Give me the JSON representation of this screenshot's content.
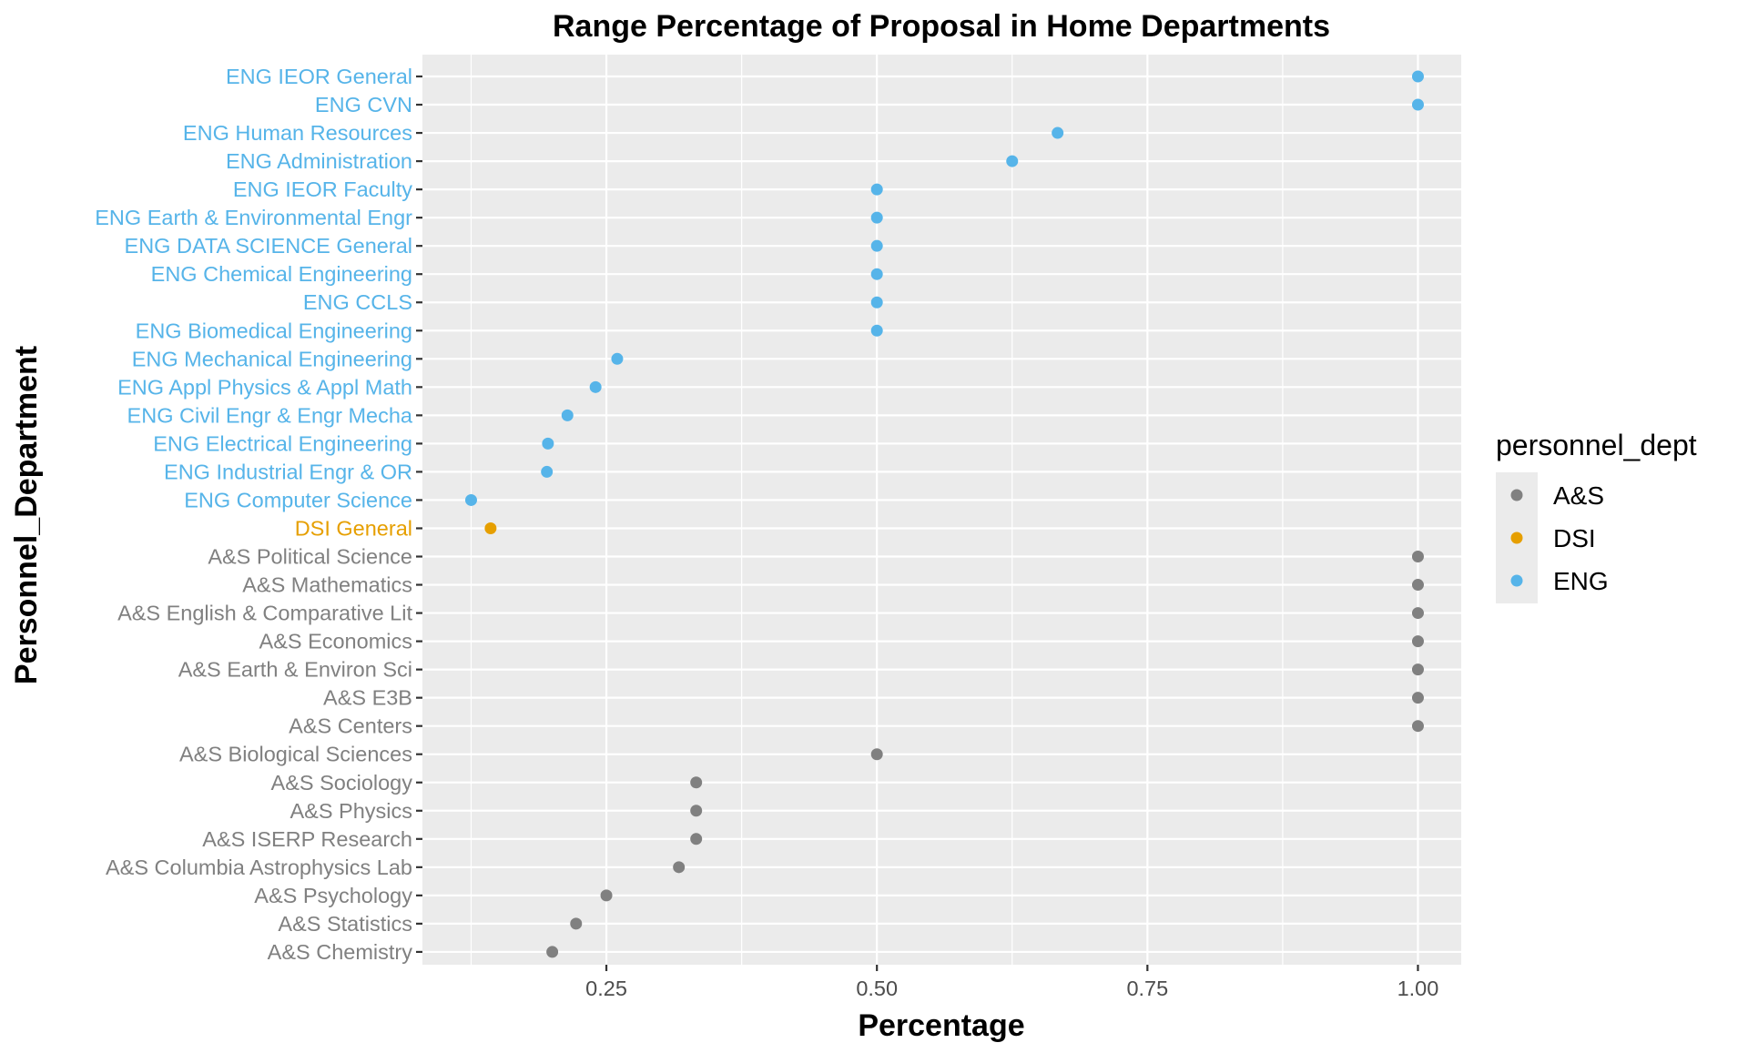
{
  "chart_data": {
    "type": "scatter",
    "title": "Range Percentage of Proposal in Home Departments",
    "xlabel": "Percentage",
    "ylabel": "Personnel_Department",
    "xlim": [
      0.08,
      1.04
    ],
    "x_ticks": [
      0.25,
      0.5,
      0.75,
      1.0
    ],
    "x_tick_labels": [
      "0.25",
      "0.50",
      "0.75",
      "1.00"
    ],
    "x_minor_ticks": [
      0.125,
      0.375,
      0.625,
      0.875
    ],
    "grid": true,
    "legend": {
      "title": "personnel_dept",
      "position": "right",
      "entries": [
        {
          "label": "A&S",
          "color": "#808080"
        },
        {
          "label": "DSI",
          "color": "#E69F00"
        },
        {
          "label": "ENG",
          "color": "#56B4E9"
        }
      ]
    },
    "group_colors": {
      "A&S": "#808080",
      "DSI": "#E69F00",
      "ENG": "#56B4E9"
    },
    "points": [
      {
        "category": "ENG IEOR General",
        "group": "ENG",
        "value": 1.0
      },
      {
        "category": "ENG CVN",
        "group": "ENG",
        "value": 1.0
      },
      {
        "category": "ENG Human Resources",
        "group": "ENG",
        "value": 0.667
      },
      {
        "category": "ENG Administration",
        "group": "ENG",
        "value": 0.625
      },
      {
        "category": "ENG IEOR Faculty",
        "group": "ENG",
        "value": 0.5
      },
      {
        "category": "ENG Earth & Environmental Engr",
        "group": "ENG",
        "value": 0.5
      },
      {
        "category": "ENG DATA SCIENCE General",
        "group": "ENG",
        "value": 0.5
      },
      {
        "category": "ENG Chemical Engineering",
        "group": "ENG",
        "value": 0.5
      },
      {
        "category": "ENG CCLS",
        "group": "ENG",
        "value": 0.5
      },
      {
        "category": "ENG Biomedical Engineering",
        "group": "ENG",
        "value": 0.5
      },
      {
        "category": "ENG Mechanical Engineering",
        "group": "ENG",
        "value": 0.26
      },
      {
        "category": "ENG Appl Physics & Appl Math",
        "group": "ENG",
        "value": 0.24
      },
      {
        "category": "ENG Civil Engr  & Engr Mecha",
        "group": "ENG",
        "value": 0.214
      },
      {
        "category": "ENG Electrical Engineering",
        "group": "ENG",
        "value": 0.196
      },
      {
        "category": "ENG Industrial Engr & OR",
        "group": "ENG",
        "value": 0.195
      },
      {
        "category": "ENG Computer Science",
        "group": "ENG",
        "value": 0.125
      },
      {
        "category": "DSI General",
        "group": "DSI",
        "value": 0.143
      },
      {
        "category": "A&S Political Science",
        "group": "A&S",
        "value": 1.0
      },
      {
        "category": "A&S Mathematics",
        "group": "A&S",
        "value": 1.0
      },
      {
        "category": "A&S English & Comparative Lit",
        "group": "A&S",
        "value": 1.0
      },
      {
        "category": "A&S Economics",
        "group": "A&S",
        "value": 1.0
      },
      {
        "category": "A&S Earth & Environ Sci",
        "group": "A&S",
        "value": 1.0
      },
      {
        "category": "A&S E3B",
        "group": "A&S",
        "value": 1.0
      },
      {
        "category": "A&S Centers",
        "group": "A&S",
        "value": 1.0
      },
      {
        "category": "A&S Biological Sciences",
        "group": "A&S",
        "value": 0.5
      },
      {
        "category": "A&S Sociology",
        "group": "A&S",
        "value": 0.333
      },
      {
        "category": "A&S Physics",
        "group": "A&S",
        "value": 0.333
      },
      {
        "category": "A&S ISERP Research",
        "group": "A&S",
        "value": 0.333
      },
      {
        "category": "A&S Columbia Astrophysics Lab",
        "group": "A&S",
        "value": 0.317
      },
      {
        "category": "A&S Psychology",
        "group": "A&S",
        "value": 0.25
      },
      {
        "category": "A&S Statistics",
        "group": "A&S",
        "value": 0.222
      },
      {
        "category": "A&S Chemistry",
        "group": "A&S",
        "value": 0.2
      }
    ]
  }
}
